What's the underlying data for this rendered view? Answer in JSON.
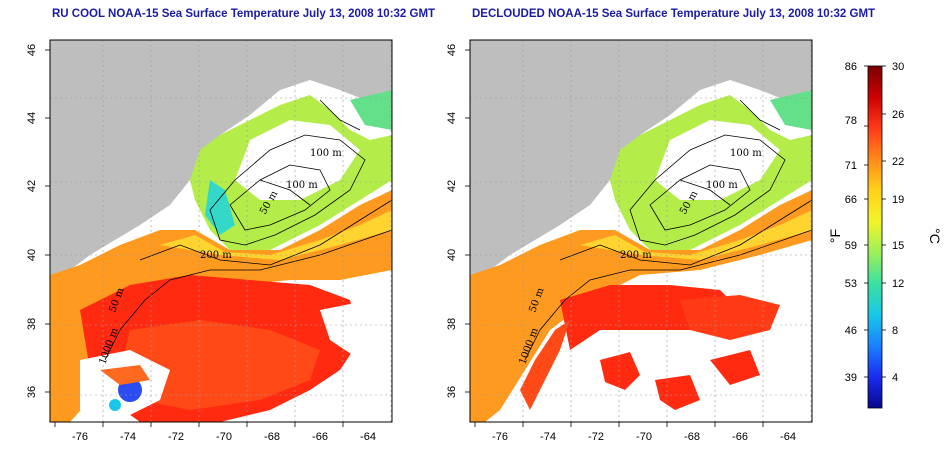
{
  "left_panel": {
    "title": "RU COOL NOAA-15 Sea Surface Temperature July 13, 2008 10:32 GMT"
  },
  "right_panel": {
    "title": "DECLOUDED NOAA-15 Sea Surface Temperature July 13, 2008 10:32 GMT"
  },
  "axes": {
    "lon_ticks": [
      "-76",
      "-74",
      "-72",
      "-70",
      "-68",
      "-66",
      "-64"
    ],
    "lat_ticks": [
      "46",
      "44",
      "42",
      "40",
      "38",
      "36"
    ]
  },
  "contours": {
    "labels": [
      "100 m",
      "100 m",
      "50 m",
      "200 m",
      "50 m",
      "1000 m"
    ],
    "labels_right": [
      "100 m",
      "100 m",
      "50 m",
      "200 m",
      "50 m",
      "1000 m"
    ]
  },
  "colorbar": {
    "fahrenheit_ticks": [
      "86",
      "78",
      "71",
      "66",
      "59",
      "53",
      "46",
      "39"
    ],
    "celsius_ticks": [
      "30",
      "26",
      "22",
      "19",
      "15",
      "12",
      "8",
      "4"
    ],
    "fahrenheit_unit": "°F",
    "celsius_unit": "°C",
    "colors": [
      "#7a0000",
      "#cc0000",
      "#ff3a1a",
      "#ff8a1a",
      "#ffd21a",
      "#f4f42a",
      "#9cf05a",
      "#3ce0a0",
      "#18c8e8",
      "#1a80ff",
      "#1a2cf0",
      "#08088c"
    ]
  },
  "colors": {
    "land": "#bebebe",
    "frame": "#000000",
    "title_blue": "#1a1aa8"
  }
}
